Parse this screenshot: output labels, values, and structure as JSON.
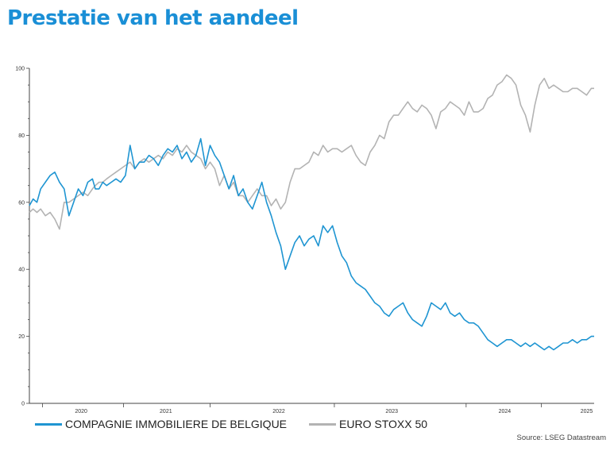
{
  "page": {
    "title": "Prestatie van het aandeel",
    "source": "Source: LSEG Datastream"
  },
  "colors": {
    "title": "#1a8fd6",
    "series_a": "#1f95d2",
    "series_b": "#b3b3b3",
    "axis": "#444444"
  },
  "chart_data": {
    "type": "line",
    "title": "Prestatie van het aandeel",
    "xlabel": "",
    "ylabel": "",
    "ylim": [
      0,
      100
    ],
    "yticks": [
      0,
      20,
      40,
      60,
      80,
      100
    ],
    "xlim": [
      2019.58,
      2025.58
    ],
    "xticks": [
      {
        "label": "2020",
        "at": 2020.13
      },
      {
        "label": "2021",
        "at": 2021.03
      },
      {
        "label": "2022",
        "at": 2022.23
      },
      {
        "label": "2023",
        "at": 2023.43
      },
      {
        "label": "2024",
        "at": 2024.63
      },
      {
        "label": "2025",
        "at": 2025.5
      }
    ],
    "xaxis_boundaries": [
      2019.72,
      2020.58,
      2021.5,
      2022.82,
      2024.22,
      2025.02
    ],
    "grid": false,
    "legend_position": "bottom-left",
    "series": [
      {
        "name": "COMPAGNIE IMMOBILIERE DE BELGIQUE",
        "x": [
          2019.58,
          2019.62,
          2019.66,
          2019.7,
          2019.75,
          2019.8,
          2019.85,
          2019.9,
          2019.95,
          2020.0,
          2020.05,
          2020.1,
          2020.15,
          2020.2,
          2020.25,
          2020.28,
          2020.32,
          2020.36,
          2020.4,
          2020.45,
          2020.5,
          2020.55,
          2020.6,
          2020.65,
          2020.7,
          2020.75,
          2020.8,
          2020.85,
          2020.9,
          2020.95,
          2021.0,
          2021.05,
          2021.1,
          2021.15,
          2021.2,
          2021.25,
          2021.3,
          2021.35,
          2021.4,
          2021.45,
          2021.5,
          2021.55,
          2021.6,
          2021.65,
          2021.7,
          2021.75,
          2021.8,
          2021.85,
          2021.9,
          2021.95,
          2022.0,
          2022.05,
          2022.1,
          2022.15,
          2022.2,
          2022.25,
          2022.3,
          2022.35,
          2022.4,
          2022.45,
          2022.5,
          2022.55,
          2022.6,
          2022.65,
          2022.7,
          2022.75,
          2022.8,
          2022.85,
          2022.9,
          2022.95,
          2023.0,
          2023.05,
          2023.1,
          2023.15,
          2023.2,
          2023.25,
          2023.3,
          2023.35,
          2023.4,
          2023.45,
          2023.5,
          2023.55,
          2023.6,
          2023.65,
          2023.7,
          2023.75,
          2023.8,
          2023.85,
          2023.9,
          2023.95,
          2024.0,
          2024.05,
          2024.1,
          2024.15,
          2024.2,
          2024.25,
          2024.3,
          2024.35,
          2024.4,
          2024.45,
          2024.5,
          2024.55,
          2024.6,
          2024.65,
          2024.7,
          2024.75,
          2024.8,
          2024.85,
          2024.9,
          2024.95,
          2025.0,
          2025.05,
          2025.1,
          2025.15,
          2025.2,
          2025.25,
          2025.3,
          2025.35,
          2025.4,
          2025.45,
          2025.5,
          2025.55,
          2025.58
        ],
        "y": [
          59,
          61,
          60,
          64,
          66,
          68,
          69,
          66,
          64,
          56,
          60,
          64,
          62,
          66,
          67,
          64,
          64,
          66,
          65,
          66,
          67,
          66,
          68,
          77,
          70,
          72,
          72,
          74,
          73,
          71,
          74,
          76,
          75,
          77,
          73,
          75,
          72,
          74,
          79,
          71,
          77,
          74,
          72,
          68,
          64,
          68,
          62,
          64,
          60,
          58,
          62,
          66,
          60,
          56,
          51,
          47,
          40,
          44,
          48,
          50,
          47,
          49,
          50,
          47,
          53,
          51,
          53,
          48,
          44,
          42,
          38,
          36,
          35,
          34,
          32,
          30,
          29,
          27,
          26,
          28,
          29,
          30,
          27,
          25,
          24,
          23,
          26,
          30,
          29,
          28,
          30,
          27,
          26,
          27,
          25,
          24,
          24,
          23,
          21,
          19,
          18,
          17,
          18,
          19,
          19,
          18,
          17,
          18,
          17,
          18,
          17,
          16,
          17,
          16,
          17,
          18,
          18,
          19,
          18,
          19,
          19,
          20,
          20
        ]
      },
      {
        "name": "EURO STOXX 50",
        "x": [
          2019.58,
          2019.62,
          2019.66,
          2019.7,
          2019.75,
          2019.8,
          2019.85,
          2019.9,
          2019.95,
          2020.0,
          2020.05,
          2020.1,
          2020.15,
          2020.2,
          2020.25,
          2020.28,
          2020.32,
          2020.36,
          2020.4,
          2020.45,
          2020.5,
          2020.55,
          2020.6,
          2020.65,
          2020.7,
          2020.75,
          2020.8,
          2020.85,
          2020.9,
          2020.95,
          2021.0,
          2021.05,
          2021.1,
          2021.15,
          2021.2,
          2021.25,
          2021.3,
          2021.35,
          2021.4,
          2021.45,
          2021.5,
          2021.55,
          2021.6,
          2021.65,
          2021.7,
          2021.75,
          2021.8,
          2021.85,
          2021.9,
          2021.95,
          2022.0,
          2022.05,
          2022.1,
          2022.15,
          2022.2,
          2022.25,
          2022.3,
          2022.35,
          2022.4,
          2022.45,
          2022.5,
          2022.55,
          2022.6,
          2022.65,
          2022.7,
          2022.75,
          2022.8,
          2022.85,
          2022.9,
          2022.95,
          2023.0,
          2023.05,
          2023.1,
          2023.15,
          2023.2,
          2023.25,
          2023.3,
          2023.35,
          2023.4,
          2023.45,
          2023.5,
          2023.55,
          2023.6,
          2023.65,
          2023.7,
          2023.75,
          2023.8,
          2023.85,
          2023.9,
          2023.95,
          2024.0,
          2024.05,
          2024.1,
          2024.15,
          2024.2,
          2024.25,
          2024.3,
          2024.35,
          2024.4,
          2024.45,
          2024.5,
          2024.55,
          2024.6,
          2024.65,
          2024.7,
          2024.75,
          2024.8,
          2024.85,
          2024.9,
          2024.95,
          2025.0,
          2025.05,
          2025.1,
          2025.15,
          2025.2,
          2025.25,
          2025.3,
          2025.35,
          2025.4,
          2025.45,
          2025.5,
          2025.55,
          2025.58
        ],
        "y": [
          57,
          58,
          57,
          58,
          56,
          57,
          55,
          52,
          60,
          60,
          61,
          62,
          63,
          62,
          64,
          65,
          66,
          66,
          67,
          68,
          69,
          70,
          71,
          72,
          70,
          72,
          73,
          72,
          73,
          74,
          73,
          75,
          74,
          76,
          75,
          77,
          75,
          74,
          73,
          70,
          72,
          70,
          65,
          68,
          64,
          66,
          62,
          62,
          60,
          62,
          64,
          62,
          62,
          59,
          61,
          58,
          60,
          66,
          70,
          70,
          71,
          72,
          75,
          74,
          77,
          75,
          76,
          76,
          75,
          76,
          77,
          74,
          72,
          71,
          75,
          77,
          80,
          79,
          84,
          86,
          86,
          88,
          90,
          88,
          87,
          89,
          88,
          86,
          82,
          87,
          88,
          90,
          89,
          88,
          86,
          90,
          87,
          87,
          88,
          91,
          92,
          95,
          96,
          98,
          97,
          95,
          89,
          86,
          81,
          89,
          95,
          97,
          94,
          95,
          94,
          93,
          93,
          94,
          94,
          93,
          92,
          94,
          94
        ]
      }
    ]
  }
}
